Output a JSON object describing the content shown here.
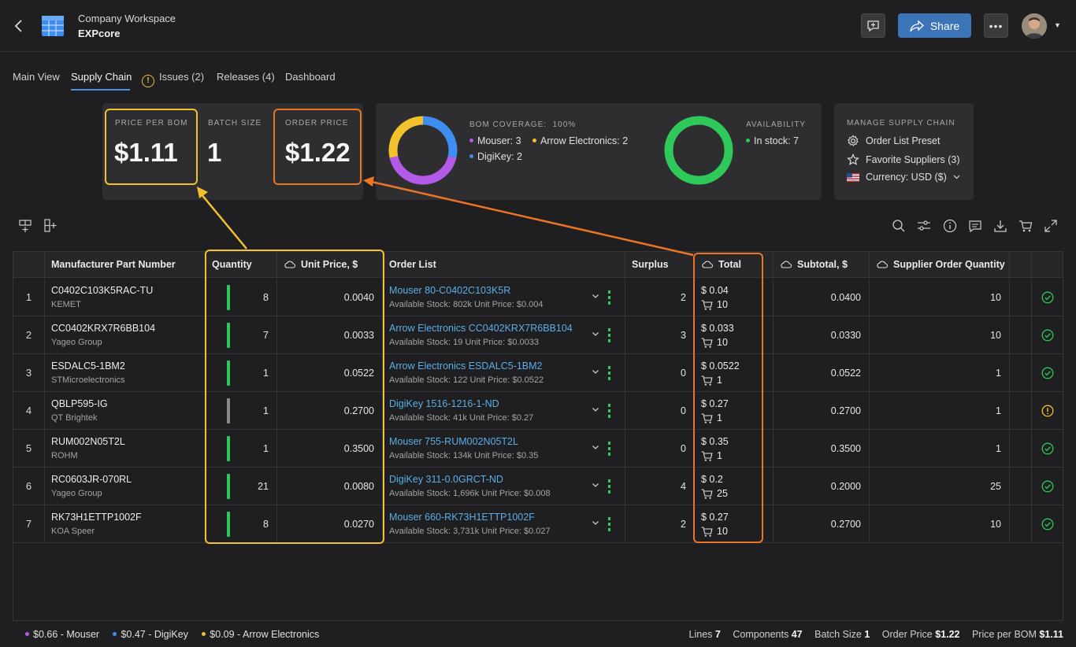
{
  "header": {
    "workspace_label": "Company Workspace",
    "project_name": "EXPcore",
    "share_label": "Share",
    "more_label": "•••"
  },
  "tabs": [
    {
      "label": "Main View"
    },
    {
      "label": "Supply Chain",
      "active": true
    },
    {
      "label": "Issues (2)",
      "icon": "warning-icon"
    },
    {
      "label": "Releases (4)"
    },
    {
      "label": "Dashboard"
    }
  ],
  "summary": {
    "price_per_bom_label": "PRICE PER BOM",
    "price_per_bom": "$1.11",
    "batch_size_label": "BATCH SIZE",
    "batch_size": "1",
    "order_price_label": "ORDER PRICE",
    "order_price": "$1.22",
    "bom_coverage_label": "BOM COVERAGE:",
    "bom_coverage_value": "100%",
    "coverage_legend": [
      {
        "label": "Mouser: 3",
        "color": "#b35ae8",
        "count": 3
      },
      {
        "label": "Arrow Electronics: 2",
        "color": "#f2c12e",
        "count": 2
      },
      {
        "label": "DigiKey: 2",
        "color": "#3d8ef0",
        "count": 2
      }
    ],
    "availability_label": "AVAILABILITY",
    "availability_legend": [
      {
        "label": "In stock: 7",
        "color": "#2ec958",
        "count": 7
      }
    ],
    "manage_label": "MANAGE SUPPLY CHAIN",
    "manage_items": [
      {
        "label": "Order List Preset",
        "icon": "gear-icon"
      },
      {
        "label": "Favorite Suppliers (3)",
        "icon": "star-icon"
      },
      {
        "label": "Currency: USD ($)",
        "icon": "us-flag-icon"
      }
    ]
  },
  "table": {
    "columns": [
      "",
      "Manufacturer Part Number",
      "Quantity",
      "Unit Price, $",
      "Order List",
      "Surplus",
      "Total",
      "Subtotal, $",
      "Supplier Order Quantity"
    ],
    "rows": [
      {
        "n": "1",
        "part": "C0402C103K5RAC-TU",
        "mfr": "KEMET",
        "bar": "#2ec958",
        "qty": "8",
        "unit": "0.0040",
        "order": "Mouser 80-C0402C103K5R",
        "stock": "Available Stock: 802k  Unit Price: $0.004",
        "surplus": "2",
        "total": "$ 0.04",
        "cart": "10",
        "subtotal": "0.0400",
        "soq": "10",
        "status": "ok"
      },
      {
        "n": "2",
        "part": "CC0402KRX7R6BB104",
        "mfr": "Yageo Group",
        "bar": "#2ec958",
        "qty": "7",
        "unit": "0.0033",
        "order": "Arrow Electronics CC0402KRX7R6BB104",
        "stock": "Available Stock: 19  Unit Price: $0.0033",
        "surplus": "3",
        "total": "$ 0.033",
        "cart": "10",
        "subtotal": "0.0330",
        "soq": "10",
        "status": "ok"
      },
      {
        "n": "3",
        "part": "ESDALC5-1BM2",
        "mfr": "STMicroelectronics",
        "bar": "#2ec958",
        "qty": "1",
        "unit": "0.0522",
        "order": "Arrow Electronics ESDALC5-1BM2",
        "stock": "Available Stock: 122  Unit Price: $0.0522",
        "surplus": "0",
        "total": "$ 0.0522",
        "cart": "1",
        "subtotal": "0.0522",
        "soq": "1",
        "status": "ok"
      },
      {
        "n": "4",
        "part": "QBLP595-IG",
        "mfr": "QT Brightek",
        "bar": "#8a8a8a",
        "qty": "1",
        "unit": "0.2700",
        "order": "DigiKey 1516-1216-1-ND",
        "stock": "Available Stock: 41k  Unit Price: $0.27",
        "surplus": "0",
        "total": "$ 0.27",
        "cart": "1",
        "subtotal": "0.2700",
        "soq": "1",
        "status": "warn"
      },
      {
        "n": "5",
        "part": "RUM002N05T2L",
        "mfr": "ROHM",
        "bar": "#2ec958",
        "qty": "1",
        "unit": "0.3500",
        "order": "Mouser 755-RUM002N05T2L",
        "stock": "Available Stock: 134k  Unit Price: $0.35",
        "surplus": "0",
        "total": "$ 0.35",
        "cart": "1",
        "subtotal": "0.3500",
        "soq": "1",
        "status": "ok"
      },
      {
        "n": "6",
        "part": "RC0603JR-070RL",
        "mfr": "Yageo Group",
        "bar": "#2ec958",
        "qty": "21",
        "unit": "0.0080",
        "order": "DigiKey 311-0.0GRCT-ND",
        "stock": "Available Stock: 1,696k  Unit Price: $0.008",
        "surplus": "4",
        "total": "$ 0.2",
        "cart": "25",
        "subtotal": "0.2000",
        "soq": "25",
        "status": "ok"
      },
      {
        "n": "7",
        "part": "RK73H1ETTP1002F",
        "mfr": "KOA Speer",
        "bar": "#2ec958",
        "qty": "8",
        "unit": "0.0270",
        "order": "Mouser 660-RK73H1ETTP1002F",
        "stock": "Available Stock: 3,731k  Unit Price: $0.027",
        "surplus": "2",
        "total": "$ 0.27",
        "cart": "10",
        "subtotal": "0.2700",
        "soq": "10",
        "status": "ok"
      }
    ]
  },
  "footer": {
    "suppliers": [
      {
        "label": "$0.66 - Mouser",
        "color": "#b35ae8"
      },
      {
        "label": "$0.47 - DigiKey",
        "color": "#3d8ef0"
      },
      {
        "label": "$0.09 - Arrow Electronics",
        "color": "#f2c12e"
      }
    ],
    "lines_label": "Lines",
    "lines": "7",
    "components_label": "Components",
    "components": "47",
    "batch_label": "Batch Size",
    "batch": "1",
    "order_price_label": "Order Price",
    "order_price": "$1.22",
    "price_bom_label": "Price per BOM",
    "price_bom": "$1.11"
  },
  "colors": {
    "accent": "#3c74b8",
    "highlight_yellow": "#f2c12e",
    "highlight_orange": "#ec7424",
    "ok": "#2ec958",
    "warn": "#f2c12e"
  }
}
